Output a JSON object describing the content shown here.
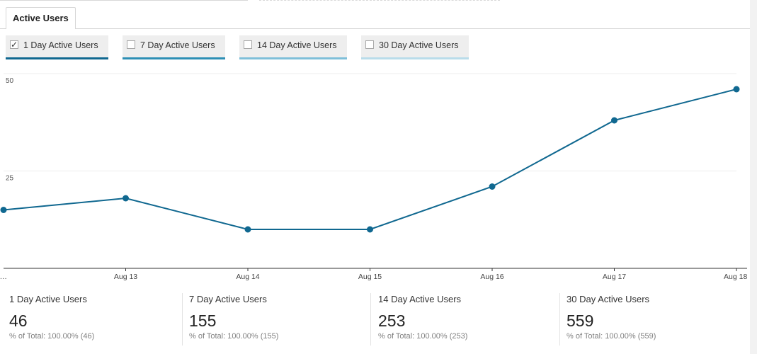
{
  "tab": {
    "label": "Active Users"
  },
  "metric_toggles": [
    {
      "label": "1 Day Active Users",
      "checked": true,
      "check_glyph": "✓",
      "underline_color": "#106890"
    },
    {
      "label": "7 Day Active Users",
      "checked": false,
      "check_glyph": "",
      "underline_color": "#2d8fb5"
    },
    {
      "label": "14 Day Active Users",
      "checked": false,
      "check_glyph": "",
      "underline_color": "#7ebfd9"
    },
    {
      "label": "30 Day Active Users",
      "checked": false,
      "check_glyph": "",
      "underline_color": "#b9dcea"
    }
  ],
  "chart_data": {
    "type": "line",
    "x_tick_labels": [
      "…",
      "Aug 13",
      "Aug 14",
      "Aug 15",
      "Aug 16",
      "Aug 17",
      "Aug 18"
    ],
    "y_tick_labels": [
      "50",
      "25"
    ],
    "series": [
      {
        "values": [
          15,
          18,
          10,
          10,
          21,
          38,
          46
        ],
        "color": "#106890"
      }
    ],
    "ylim": [
      0,
      50
    ],
    "grid": true
  },
  "summary": [
    {
      "label": "1 Day Active Users",
      "value": "46",
      "total": "% of Total: 100.00% (46)"
    },
    {
      "label": "7 Day Active Users",
      "value": "155",
      "total": "% of Total: 100.00% (155)"
    },
    {
      "label": "14 Day Active Users",
      "value": "253",
      "total": "% of Total: 100.00% (253)"
    },
    {
      "label": "30 Day Active Users",
      "value": "559",
      "total": "% of Total: 100.00% (559)"
    }
  ]
}
